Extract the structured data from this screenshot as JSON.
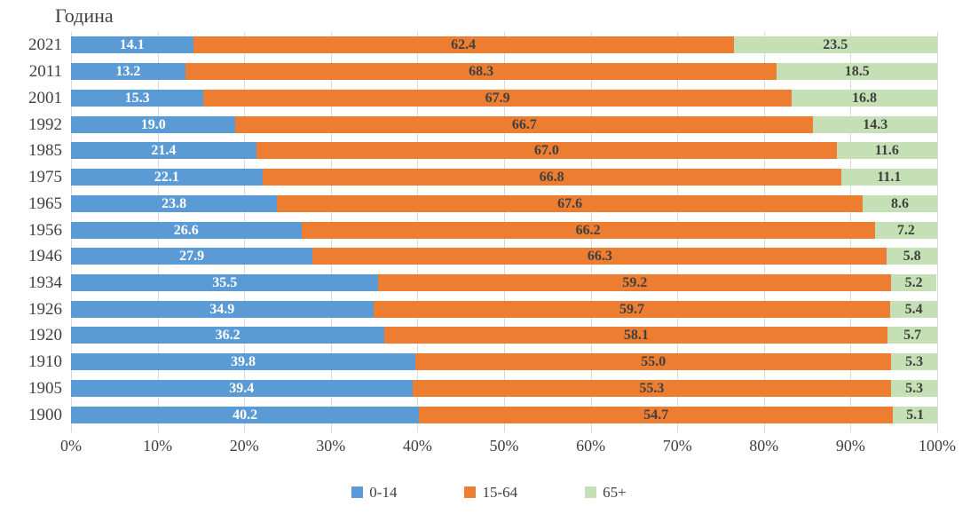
{
  "title": "Година",
  "x_axis": {
    "ticks": [
      "0%",
      "10%",
      "20%",
      "30%",
      "40%",
      "50%",
      "60%",
      "70%",
      "80%",
      "90%",
      "100%"
    ]
  },
  "legend": [
    {
      "label": "0-14",
      "color": "#5B9BD5"
    },
    {
      "label": "15-64",
      "color": "#ED7D31"
    },
    {
      "label": "65+",
      "color": "#C5E0B4"
    }
  ],
  "colors": {
    "blue": "#5B9BD5",
    "orange": "#ED7D31",
    "green": "#C5E0B4",
    "gridline": "#D9D9D9",
    "text": "#404040",
    "label_on_blue": "#FFFFFF",
    "label_on_orange": "#404040",
    "label_on_green": "#404040"
  },
  "chart_data": {
    "type": "bar",
    "orientation": "horizontal",
    "stacked": true,
    "title": "Година",
    "xlabel": "",
    "ylabel": "Година",
    "xlim": [
      0,
      100
    ],
    "x_tick_format": "percent",
    "grid": "vertical",
    "legend_position": "bottom",
    "categories": [
      "2021",
      "2011",
      "2001",
      "1992",
      "1985",
      "1975",
      "1965",
      "1956",
      "1946",
      "1934",
      "1926",
      "1920",
      "1910",
      "1905",
      "1900"
    ],
    "series": [
      {
        "name": "0-14",
        "color": "#5B9BD5",
        "label_color": "#FFFFFF",
        "values": [
          14.1,
          13.2,
          15.3,
          19.0,
          21.4,
          22.1,
          23.8,
          26.6,
          27.9,
          35.5,
          34.9,
          36.2,
          39.8,
          39.4,
          40.2
        ]
      },
      {
        "name": "15-64",
        "color": "#ED7D31",
        "label_color": "#404040",
        "values": [
          62.4,
          68.3,
          67.9,
          66.7,
          67.0,
          66.8,
          67.6,
          66.2,
          66.3,
          59.2,
          59.7,
          58.1,
          55.0,
          55.3,
          54.7
        ]
      },
      {
        "name": "65+",
        "color": "#C5E0B4",
        "label_color": "#404040",
        "values": [
          23.5,
          18.5,
          16.8,
          14.3,
          11.6,
          11.1,
          8.6,
          7.2,
          5.8,
          5.2,
          5.4,
          5.7,
          5.3,
          5.3,
          5.1
        ]
      }
    ]
  }
}
